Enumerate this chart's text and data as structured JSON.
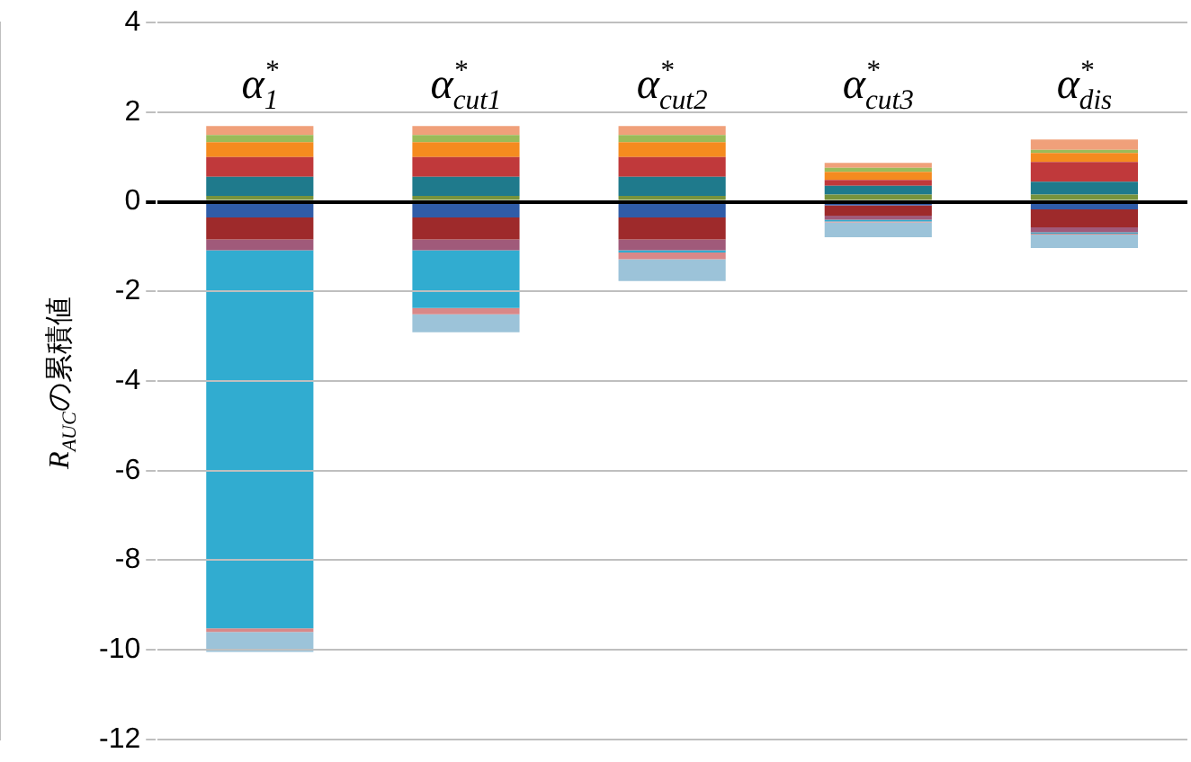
{
  "chart_data": {
    "type": "bar",
    "stacked": true,
    "ylabel": "R$_{AUC}$の累積値",
    "categories": [
      "α$^{*}$$_{1}$",
      "α$^{*}$$_{cut1}$",
      "α$^{*}$$_{cut2}$",
      "α$^{*}$$_{cut3}$",
      "α$^{*}$$_{dis}$"
    ],
    "series": [
      {
        "color": "#77933c",
        "values": [
          0.13,
          0.13,
          0.13,
          0.16,
          0.16
        ]
      },
      {
        "color": "#1f7a8c",
        "values": [
          0.43,
          0.43,
          0.43,
          0.2,
          0.29
        ]
      },
      {
        "color": "#c0393b",
        "values": [
          0.44,
          0.44,
          0.44,
          0.13,
          0.44
        ]
      },
      {
        "color": "#f58b1f",
        "values": [
          0.33,
          0.33,
          0.33,
          0.18,
          0.2
        ]
      },
      {
        "color": "#9bbb59",
        "values": [
          0.16,
          0.16,
          0.16,
          0.09,
          0.07
        ]
      },
      {
        "color": "#f0a07a",
        "values": [
          0.2,
          0.2,
          0.2,
          0.11,
          0.23
        ]
      },
      {
        "color": "#2f5ca8",
        "values": [
          -0.35,
          -0.35,
          -0.35,
          -0.08,
          -0.17
        ]
      },
      {
        "color": "#9e2a2b",
        "values": [
          -0.49,
          -0.49,
          -0.49,
          -0.23,
          -0.4
        ]
      },
      {
        "color": "#a05a7a",
        "values": [
          -0.24,
          -0.24,
          -0.24,
          -0.09,
          -0.11
        ]
      },
      {
        "color": "#31acd0",
        "values": [
          -8.44,
          -1.29,
          -0.05,
          -0.04,
          -0.03
        ]
      },
      {
        "color": "#d98888",
        "values": [
          -0.08,
          -0.14,
          -0.15,
          -0.02,
          -0.02
        ]
      },
      {
        "color": "#9cc3d9",
        "values": [
          -0.45,
          -0.4,
          -0.49,
          -0.33,
          -0.3
        ]
      }
    ],
    "ylim": [
      -12,
      4
    ],
    "yticks": [
      -12,
      -10,
      -8,
      -6,
      -4,
      -2,
      0,
      2,
      4
    ],
    "grid": "y",
    "legend": false
  }
}
